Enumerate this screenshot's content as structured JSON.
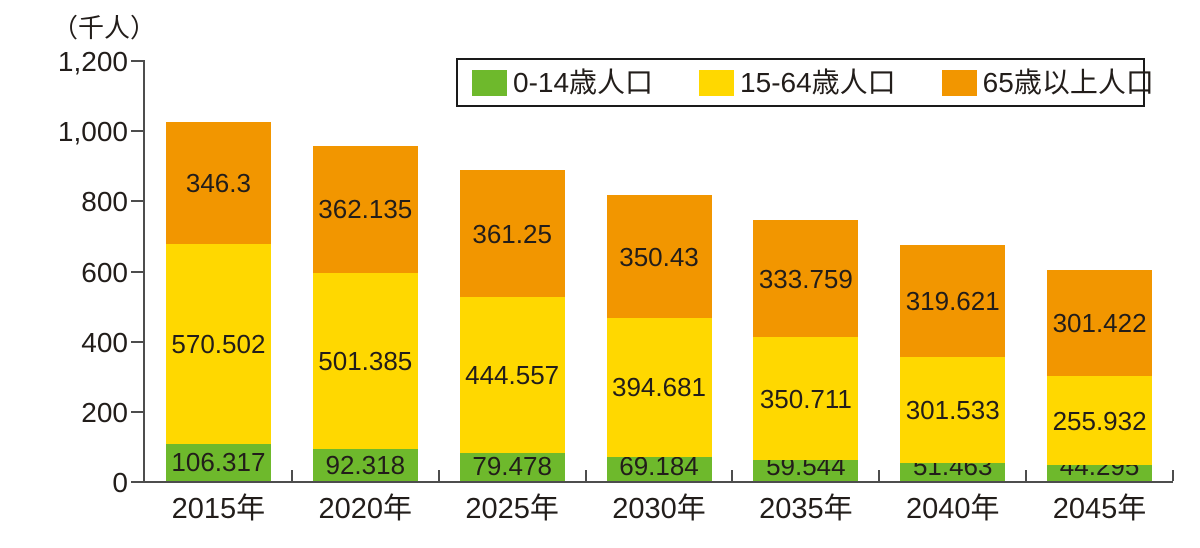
{
  "unit_label": "（千人）",
  "legend": {
    "items": [
      {
        "label": "0-14歳人口",
        "color": "#6eb92c"
      },
      {
        "label": "15-64歳人口",
        "color": "#ffd800"
      },
      {
        "label": "65歳以上人口",
        "color": "#f29600"
      }
    ]
  },
  "chart_data": {
    "type": "bar",
    "stacked": true,
    "title": "",
    "unit": "千人",
    "categories": [
      "2015年",
      "2020年",
      "2025年",
      "2030年",
      "2035年",
      "2040年",
      "2045年"
    ],
    "series": [
      {
        "name": "0-14歳人口",
        "color": "#6eb92c",
        "values": [
          106.317,
          92.318,
          79.478,
          69.184,
          59.544,
          51.463,
          44.295
        ]
      },
      {
        "name": "15-64歳人口",
        "color": "#ffd800",
        "values": [
          570.502,
          501.385,
          444.557,
          394.681,
          350.711,
          301.533,
          255.932
        ]
      },
      {
        "name": "65歳以上人口",
        "color": "#f29600",
        "values": [
          346.3,
          362.135,
          361.25,
          350.43,
          333.759,
          319.621,
          301.422
        ]
      }
    ],
    "ylim": [
      0,
      1200
    ],
    "ytick_step": 200,
    "ytick_labels": [
      "0",
      "200",
      "400",
      "600",
      "800",
      "1,000",
      "1,200"
    ],
    "legend_position": "top-right-inside",
    "grid": false,
    "bar_value_labels": "inside-center"
  }
}
